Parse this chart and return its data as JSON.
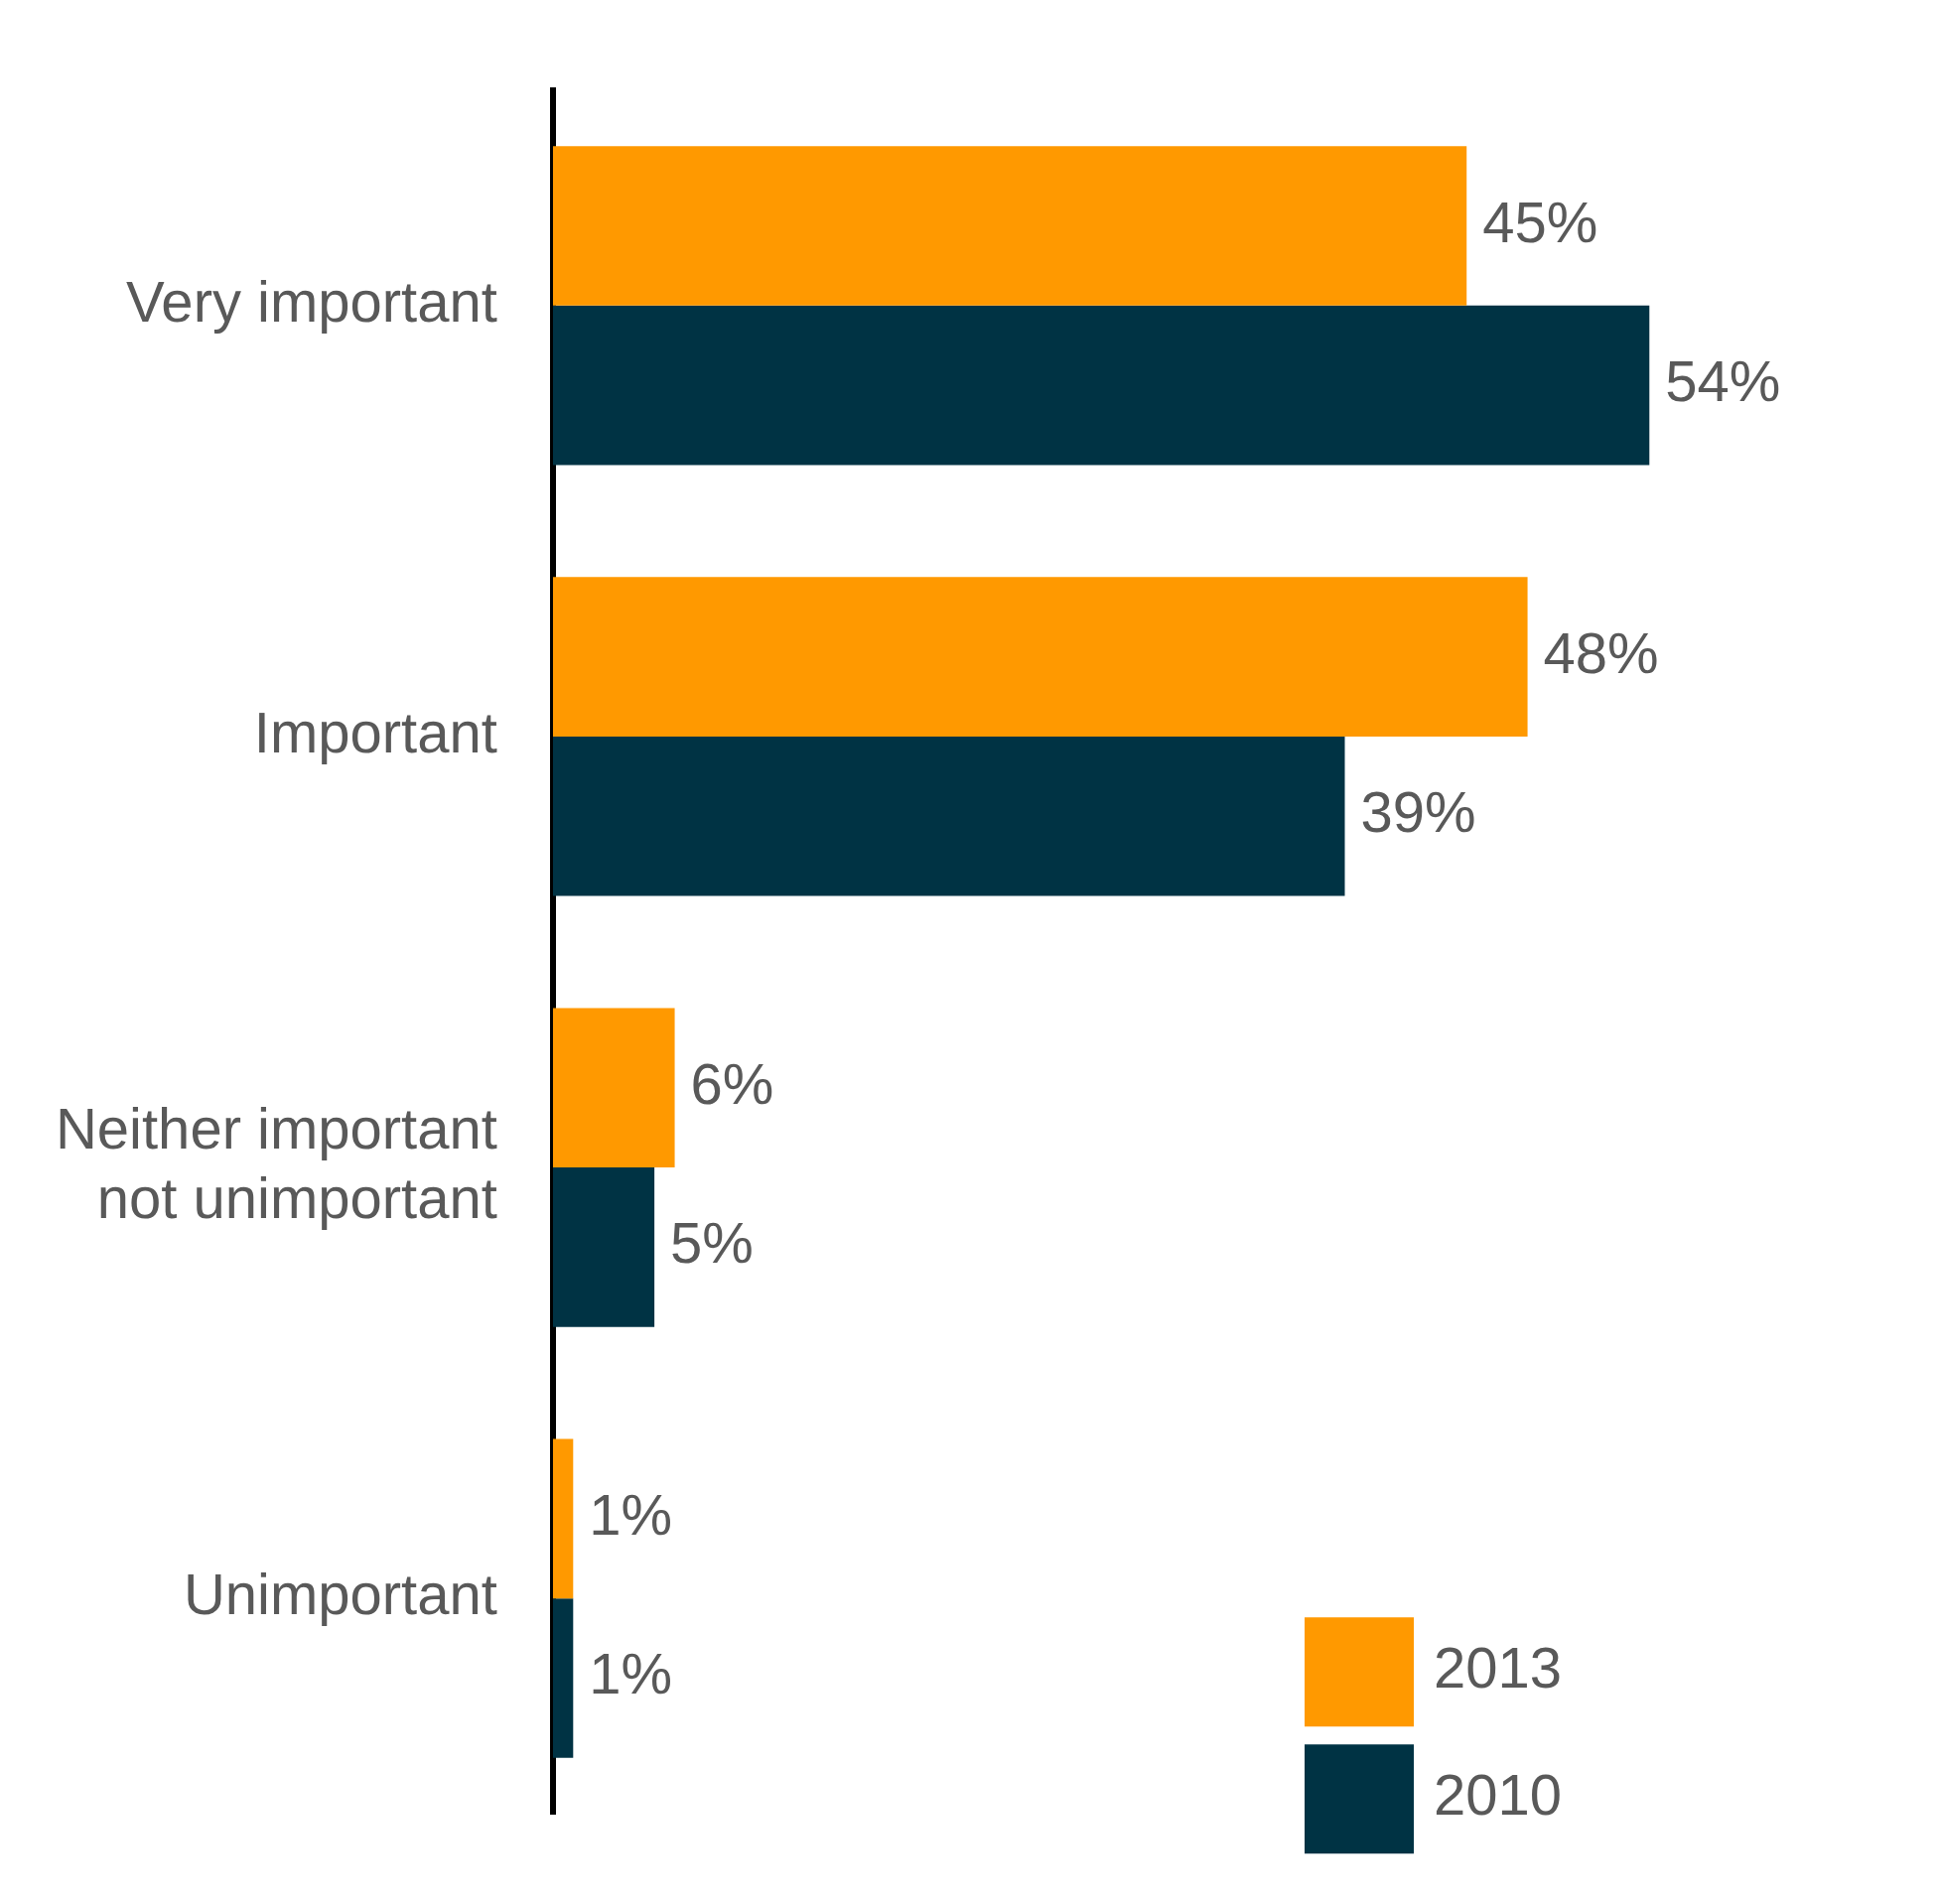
{
  "chart_data": {
    "type": "bar",
    "orientation": "horizontal",
    "categories": [
      "Very important",
      "Important",
      "Neither important not unimportant",
      "Unimportant"
    ],
    "series": [
      {
        "name": "2013",
        "color": "#ff9900",
        "values": [
          45,
          48,
          6,
          1
        ],
        "value_labels": [
          "45%",
          "48%",
          "6%",
          "1%"
        ]
      },
      {
        "name": "2010",
        "color": "#003344",
        "values": [
          54,
          39,
          5,
          1
        ],
        "value_labels": [
          "54%",
          "39%",
          "5%",
          "1%"
        ]
      }
    ],
    "legend": "bottom right"
  }
}
